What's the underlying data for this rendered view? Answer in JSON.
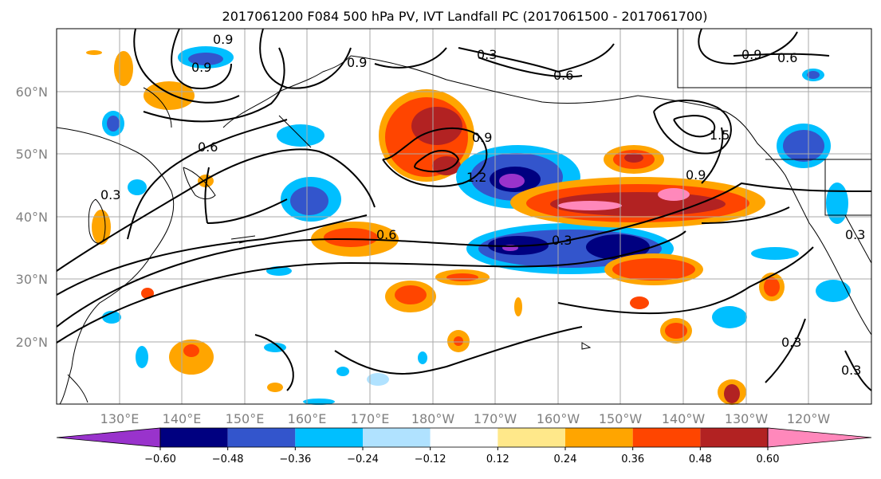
{
  "title": "2017061200 F084 500 hPa PV, IVT Landfall PC (2017061500 - 2017061700)",
  "map": {
    "lat_labels": [
      "60°N",
      "50°N",
      "40°N",
      "30°N",
      "20°N"
    ],
    "lon_labels": [
      "130°E",
      "140°E",
      "150°E",
      "160°E",
      "170°E",
      "180°W",
      "170°W",
      "160°W",
      "150°W",
      "140°W",
      "130°W",
      "120°W"
    ],
    "contour_labels": [
      "0.9",
      "0.9",
      "0.9",
      "0.3",
      "0.6",
      "0.9",
      "0.6",
      "0.6",
      "0.3",
      "0.9",
      "1.2",
      "0.9",
      "1.5",
      "0.6",
      "0.3",
      "0.3",
      "0.3",
      "0.3"
    ]
  },
  "colorbar": {
    "ticks": [
      "−0.60",
      "−0.48",
      "−0.36",
      "−0.24",
      "−0.12",
      "0.12",
      "0.24",
      "0.36",
      "0.48",
      "0.60"
    ],
    "colors": [
      "#9933cc",
      "#000080",
      "#3355cc",
      "#00bfff",
      "#b0e2ff",
      "#ffffff",
      "#ffe88a",
      "#ffa500",
      "#ff4500",
      "#b22222",
      "#ff88bb"
    ]
  }
}
